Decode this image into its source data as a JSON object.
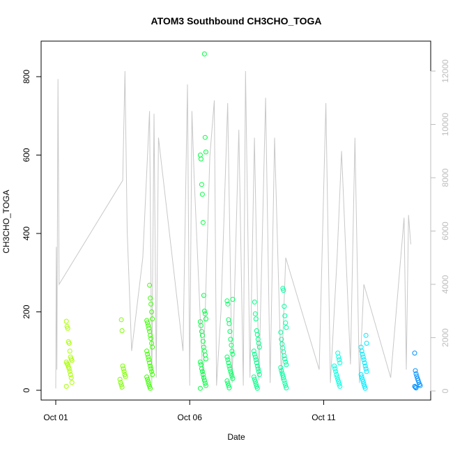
{
  "chart_data": {
    "type": "scatter",
    "title": "ATOM3 Southbound CH3CHO_TOGA",
    "xlabel": "Date",
    "ylabel": "CH3CHO_TOGA",
    "x_ticks": [
      "Oct 01",
      "Oct 06",
      "Oct 11"
    ],
    "xlim": [
      "2017-10-01",
      "2017-10-14"
    ],
    "ylim": [
      0,
      860
    ],
    "y_ticks": [
      0,
      200,
      400,
      600,
      800
    ],
    "y2lim": [
      0,
      12500
    ],
    "y2_ticks": [
      0,
      2000,
      4000,
      6000,
      8000,
      10000,
      12000
    ],
    "grid": false,
    "legend": "none",
    "colors": {
      "altitude_line": "#c8c8c8",
      "axis": "#000000",
      "right_axis": "#bdbdbd",
      "palette": [
        "#a8ff00",
        "#7cff00",
        "#3cff00",
        "#00ff40",
        "#00ff88",
        "#00ffc0",
        "#00ffff",
        "#00c8ff",
        "#0090ff"
      ]
    },
    "series": [
      {
        "axis": "left",
        "style": "points",
        "groups": [
          {
            "date": "2017-10-01",
            "color": "#a8ff00",
            "values": [
              176,
              163,
              158,
              124,
              120,
              100,
              85,
              80,
              76,
              72,
              68,
              65,
              60,
              55,
              48,
              40,
              32,
              20,
              10
            ]
          },
          {
            "date": "2017-10-03",
            "color": "#7cff00",
            "values": [
              180,
              152,
              62,
              55,
              48,
              40,
              35,
              28,
              20,
              14,
              8
            ]
          },
          {
            "date": "2017-10-04",
            "color": "#3cff00",
            "values": [
              268,
              235,
              220,
              200,
              182,
              178,
              172,
              165,
              158,
              150,
              140,
              132,
              120,
              110,
              100,
              92,
              85,
              78,
              70,
              62,
              55,
              48,
              40,
              34,
              28,
              22,
              16,
              10,
              5
            ]
          },
          {
            "date": "2017-10-06",
            "color": "#00ff40",
            "values": [
              858,
              645,
              608,
              600,
              590,
              525,
              500,
              428,
              242,
              202,
              195,
              182,
              175,
              165,
              150,
              140,
              125,
              110,
              100,
              90,
              80,
              72,
              65,
              55,
              48,
              40,
              32,
              25,
              18,
              12,
              5
            ]
          },
          {
            "date": "2017-10-07",
            "color": "#00ff60",
            "values": [
              232,
              228,
              220,
              180,
              170,
              150,
              130,
              115,
              100,
              92,
              85,
              78,
              70,
              62,
              55,
              48,
              42,
              36,
              30,
              24,
              18,
              12,
              6
            ]
          },
          {
            "date": "2017-10-08",
            "color": "#00ff88",
            "values": [
              225,
              195,
              182,
              152,
              142,
              130,
              120,
              110,
              100,
              92,
              85,
              78,
              70,
              62,
              55,
              48,
              40,
              34,
              28,
              22,
              16,
              10,
              5
            ]
          },
          {
            "date": "2017-10-09",
            "color": "#00ffa0",
            "values": [
              260,
              255,
              214,
              190,
              172,
              160,
              148,
              130,
              118,
              108,
              98,
              88,
              80,
              72,
              65,
              58,
              50,
              44,
              38,
              32,
              25,
              18,
              12,
              6
            ]
          },
          {
            "date": "2017-10-11",
            "color": "#00ffe0",
            "values": [
              95,
              85,
              78,
              70,
              62,
              55,
              48,
              40,
              34,
              28,
              22,
              16,
              10
            ]
          },
          {
            "date": "2017-10-12",
            "color": "#00e8ff",
            "values": [
              140,
              120,
              110,
              100,
              92,
              85,
              78,
              70,
              62,
              55,
              48,
              40,
              34,
              28,
              22,
              16,
              10,
              5
            ]
          },
          {
            "date": "2017-10-14",
            "color": "#0090ff",
            "values": [
              95,
              50,
              42,
              36,
              30,
              25,
              20,
              15,
              12,
              10,
              8,
              6
            ]
          }
        ]
      },
      {
        "axis": "right",
        "style": "line",
        "points": [
          [
            "2017-10-01T00:00",
            100
          ],
          [
            "2017-10-01T00:30",
            5400
          ],
          [
            "2017-10-01T01:00",
            800
          ],
          [
            "2017-10-01T02:00",
            11700
          ],
          [
            "2017-10-01T03:00",
            4000
          ],
          [
            "2017-10-03T12:00",
            7900
          ],
          [
            "2017-10-03T14:00",
            12000
          ],
          [
            "2017-10-03T16:00",
            6000
          ],
          [
            "2017-10-03T20:00",
            1500
          ],
          [
            "2017-10-04T06:00",
            5000
          ],
          [
            "2017-10-04T12:00",
            10500
          ],
          [
            "2017-10-04T14:00",
            300
          ],
          [
            "2017-10-04T16:00",
            10400
          ],
          [
            "2017-10-04T18:00",
            500
          ],
          [
            "2017-10-04T20:00",
            9500
          ],
          [
            "2017-10-05T18:00",
            1500
          ],
          [
            "2017-10-05T22:00",
            11500
          ],
          [
            "2017-10-06T00:00",
            200
          ],
          [
            "2017-10-06T02:00",
            10500
          ],
          [
            "2017-10-06T04:00",
            8000
          ],
          [
            "2017-10-06T12:00",
            300
          ],
          [
            "2017-10-06T18:00",
            8800
          ],
          [
            "2017-10-06T22:00",
            10900
          ],
          [
            "2017-10-07T00:00",
            200
          ],
          [
            "2017-10-07T04:00",
            3000
          ],
          [
            "2017-10-07T10:00",
            10800
          ],
          [
            "2017-10-07T14:00",
            300
          ],
          [
            "2017-10-07T20:00",
            9800
          ],
          [
            "2017-10-08T00:00",
            200
          ],
          [
            "2017-10-08T02:00",
            12000
          ],
          [
            "2017-10-08T06:00",
            500
          ],
          [
            "2017-10-08T10:00",
            9500
          ],
          [
            "2017-10-08T14:00",
            400
          ],
          [
            "2017-10-08T20:00",
            11000
          ],
          [
            "2017-10-09T00:00",
            300
          ],
          [
            "2017-10-09T04:00",
            9500
          ],
          [
            "2017-10-09T10:00",
            400
          ],
          [
            "2017-10-09T14:00",
            5000
          ],
          [
            "2017-10-10T20:00",
            800
          ],
          [
            "2017-10-11T00:00",
            7500
          ],
          [
            "2017-10-11T02:00",
            10800
          ],
          [
            "2017-10-11T06:00",
            300
          ],
          [
            "2017-10-11T12:00",
            5000
          ],
          [
            "2017-10-11T16:00",
            9000
          ],
          [
            "2017-10-12T00:00",
            1000
          ],
          [
            "2017-10-12T04:00",
            9500
          ],
          [
            "2017-10-12T08:00",
            300
          ],
          [
            "2017-10-12T12:00",
            4000
          ],
          [
            "2017-10-13T12:00",
            500
          ],
          [
            "2017-10-14T00:00",
            6500
          ],
          [
            "2017-10-14T02:00",
            800
          ],
          [
            "2017-10-14T04:00",
            6600
          ],
          [
            "2017-10-14T06:00",
            5500
          ]
        ]
      }
    ]
  }
}
